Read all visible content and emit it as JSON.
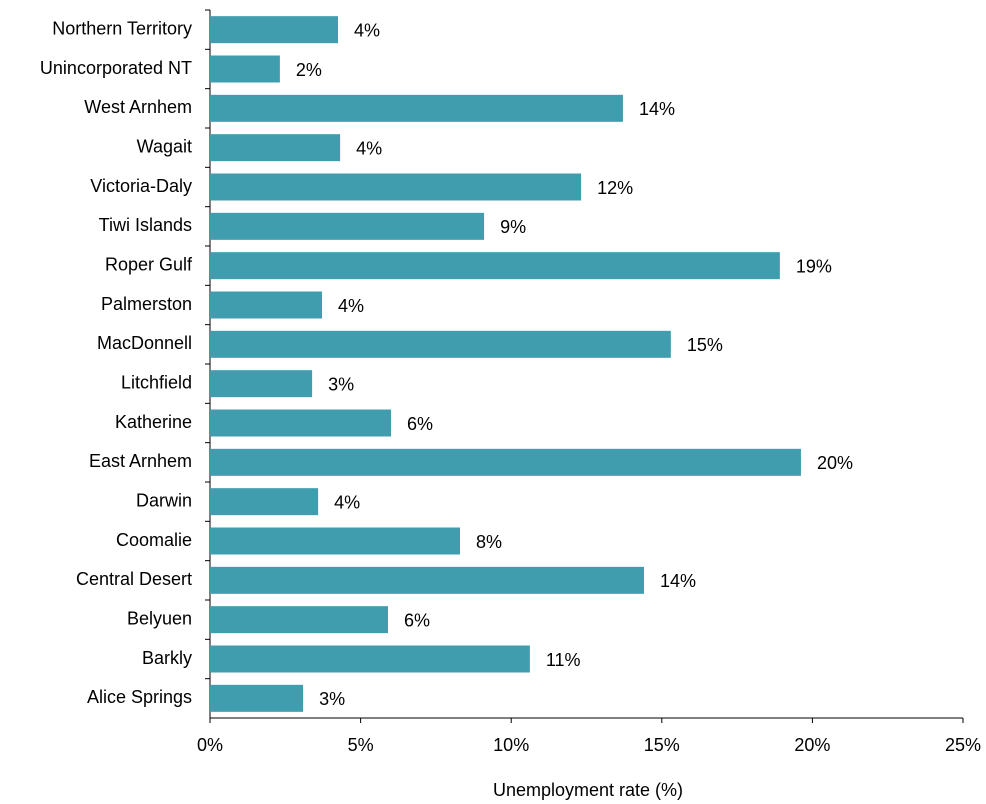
{
  "chart_data": {
    "type": "barh",
    "xlabel": "Unemployment rate (%)",
    "categories": [
      "Northern Territory",
      "Unincorporated NT",
      "West Arnhem",
      "Wagait",
      "Victoria-Daly",
      "Tiwi Islands",
      "Roper Gulf",
      "Palmerston",
      "MacDonnell",
      "Litchfield",
      "Katherine",
      "East Arnhem",
      "Darwin",
      "Coomalie",
      "Central Desert",
      "Belyuen",
      "Barkly",
      "Alice Springs"
    ],
    "values": [
      4.25,
      2.32,
      13.71,
      4.32,
      12.32,
      9.1,
      18.92,
      3.72,
      15.3,
      3.39,
      6.01,
      19.62,
      3.59,
      8.3,
      14.41,
      5.91,
      10.62,
      3.09
    ],
    "value_labels": [
      "4%",
      "2%",
      "14%",
      "4%",
      "12%",
      "9%",
      "19%",
      "4%",
      "15%",
      "3%",
      "6%",
      "20%",
      "4%",
      "8%",
      "14%",
      "6%",
      "11%",
      "3%"
    ],
    "color": "#3f9dad",
    "xlim": [
      0,
      25
    ],
    "xticks": [
      {
        "value": 0,
        "label": "0%"
      },
      {
        "value": 5,
        "label": "5%"
      },
      {
        "value": 10,
        "label": "10%"
      },
      {
        "value": 15,
        "label": "15%"
      },
      {
        "value": 20,
        "label": "20%"
      },
      {
        "value": 25,
        "label": "25%"
      }
    ],
    "grid": false
  }
}
